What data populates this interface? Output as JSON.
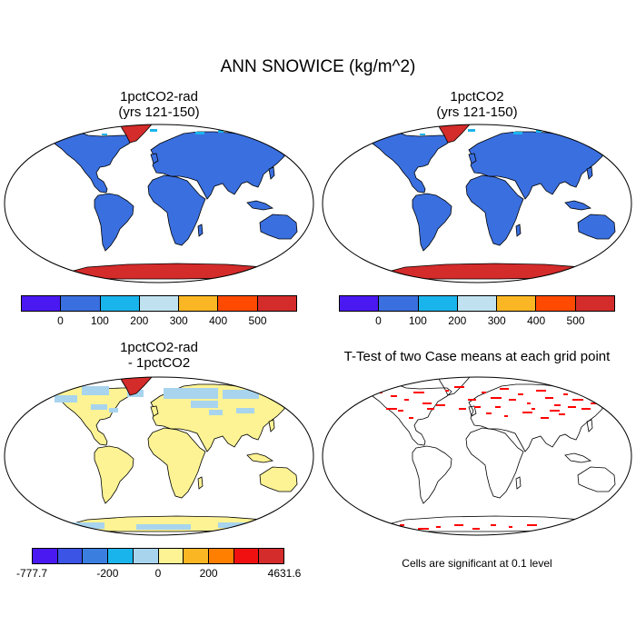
{
  "title": "ANN SNOWICE (kg/m^2)",
  "colors": {
    "seq": [
      "#4a18f0",
      "#3a6fdf",
      "#1ab4ec",
      "#c0e2f0",
      "#fbb623",
      "#ff4a00",
      "#d42b2b"
    ],
    "diff": [
      "#4a18f0",
      "#3b54e6",
      "#3a7fdf",
      "#1ab4ec",
      "#a8d4ee",
      "#fdf394",
      "#fbb623",
      "#ff7f00",
      "#f01010",
      "#d42b2b"
    ],
    "land": "#3a6fdf",
    "greenland": "#d42b2b",
    "antarctica": "#d42b2b",
    "diff_land": "#fdf394",
    "diff_snow": "#a8d4ee",
    "signif": "#ff0000"
  },
  "chart_data": [
    {
      "type": "heatmap",
      "title": "1pctCO2-rad",
      "subtitle": "(yrs 121-150)",
      "colorbar_ticks": [
        "0",
        "100",
        "200",
        "300",
        "400",
        "500"
      ],
      "levels": [
        0,
        100,
        200,
        300,
        400,
        500
      ]
    },
    {
      "type": "heatmap",
      "title": "1pctCO2",
      "subtitle": "(yrs 121-150)",
      "colorbar_ticks": [
        "0",
        "100",
        "200",
        "300",
        "400",
        "500"
      ],
      "levels": [
        0,
        100,
        200,
        300,
        400,
        500
      ]
    },
    {
      "type": "heatmap",
      "title": "1pctCO2-rad",
      "subtitle": "- 1pctCO2",
      "colorbar_ticks": [
        "-777.7",
        "-200",
        "0",
        "200",
        "4631.6"
      ],
      "min": -777.7,
      "max": 4631.6
    },
    {
      "type": "heatmap",
      "title": "T-Test of two Case means at each grid point",
      "note": "Cells are significant at 0.1 level",
      "significance_level": 0.1
    }
  ]
}
